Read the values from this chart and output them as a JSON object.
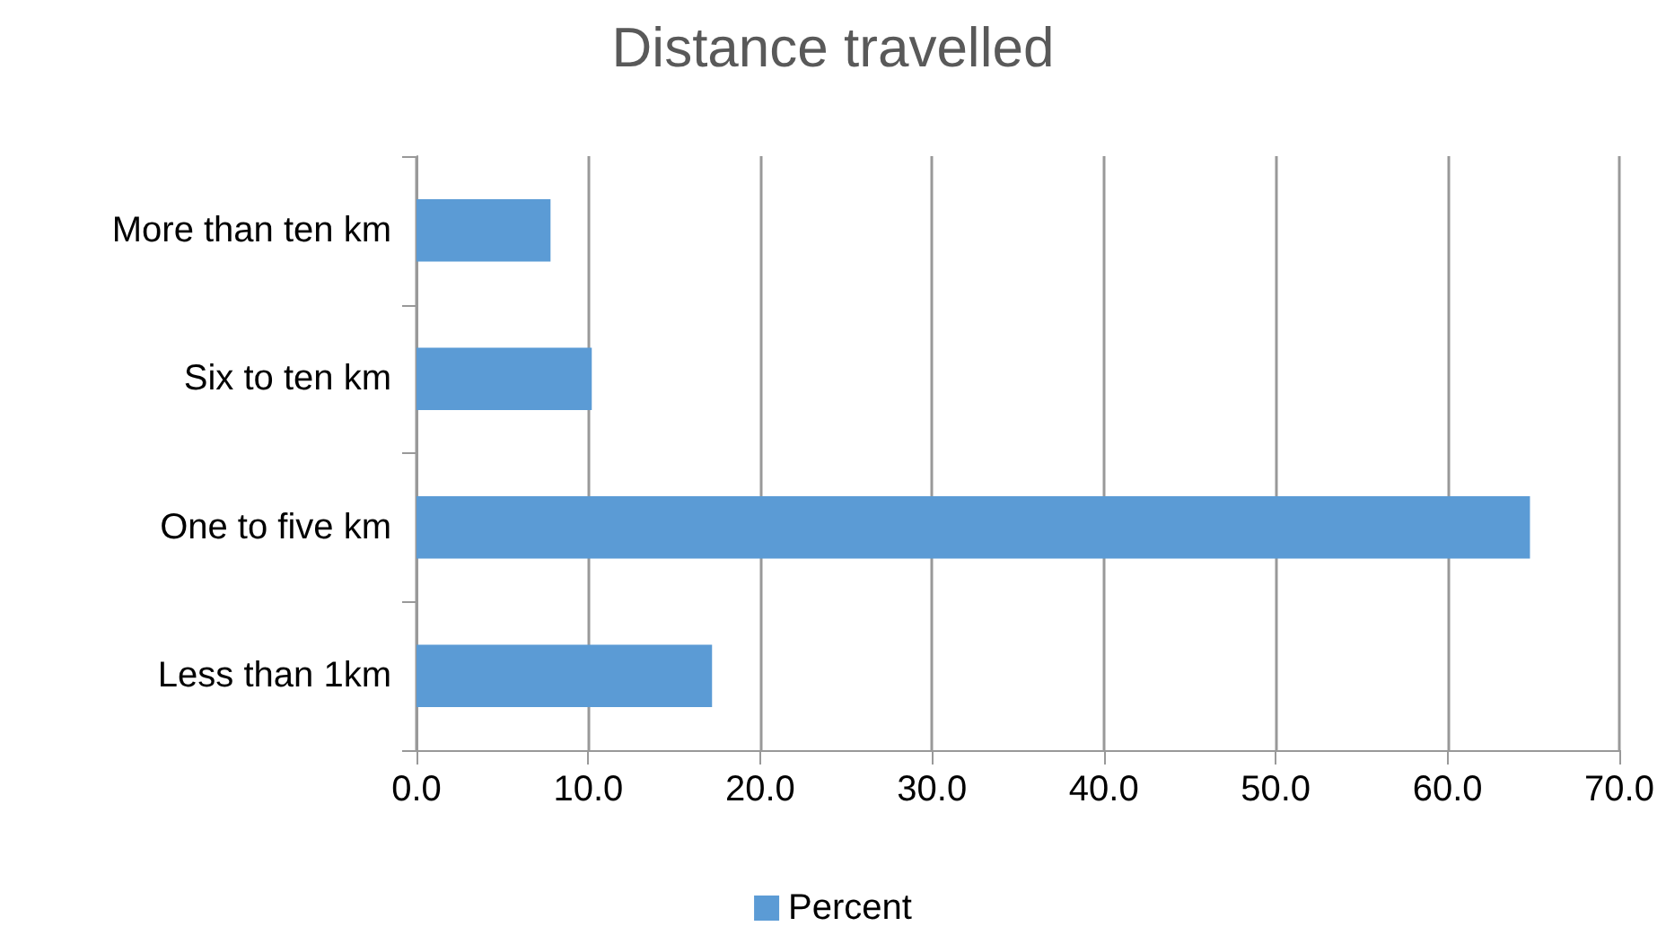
{
  "chart_data": {
    "type": "bar",
    "orientation": "horizontal",
    "title": "Distance travelled",
    "categories": [
      "More than ten km",
      "Six to ten km",
      "One to five km",
      "Less than 1km"
    ],
    "series": [
      {
        "name": "Percent",
        "color": "#5b9bd5",
        "values": [
          7.8,
          10.2,
          64.8,
          17.2
        ]
      }
    ],
    "xlim": [
      0,
      70
    ],
    "xticks": [
      {
        "value": 0,
        "label": "0.0"
      },
      {
        "value": 10,
        "label": "10.0"
      },
      {
        "value": 20,
        "label": "20.0"
      },
      {
        "value": 30,
        "label": "30.0"
      },
      {
        "value": 40,
        "label": "40.0"
      },
      {
        "value": 50,
        "label": "50.0"
      },
      {
        "value": 60,
        "label": "60.0"
      },
      {
        "value": 70,
        "label": "70.0"
      }
    ],
    "grid": "x",
    "legend": "bottom"
  }
}
